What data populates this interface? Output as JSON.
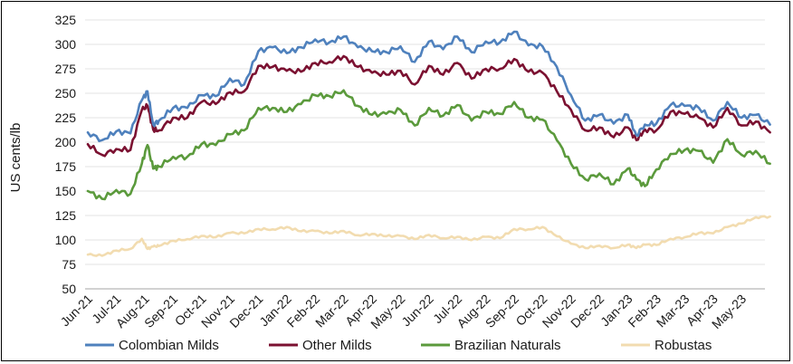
{
  "chart_data": {
    "type": "line",
    "title": "",
    "xlabel": "",
    "ylabel": "US cents/lb",
    "ylim": [
      50,
      325
    ],
    "yticks": [
      50,
      75,
      100,
      125,
      150,
      175,
      200,
      225,
      250,
      275,
      300,
      325
    ],
    "grid": "horizontal",
    "legend_position": "bottom",
    "categories": [
      "Jun-21",
      "Jul-21",
      "Aug-21",
      "Sep-21",
      "Oct-21",
      "Nov-21",
      "Dec-21",
      "Jan-22",
      "Feb-22",
      "Mar-22",
      "Apr-22",
      "May-22",
      "Jun-22",
      "Jul-22",
      "Aug-22",
      "Sep-22",
      "Oct-22",
      "Nov-22",
      "Dec-22",
      "Jan-23",
      "Feb-23",
      "Mar-23",
      "Apr-23",
      "May-23"
    ],
    "x": [
      0,
      0.5,
      1,
      1.5,
      1.9,
      2.1,
      2.3,
      2.5,
      3,
      3.5,
      4,
      4.5,
      5,
      5.5,
      6,
      6.5,
      7,
      7.5,
      8,
      8.5,
      9,
      9.5,
      10,
      10.5,
      11,
      11.5,
      12,
      12.5,
      13,
      13.5,
      14,
      14.5,
      15,
      15.5,
      16,
      16.5,
      17,
      17.5,
      18,
      18.5,
      19,
      19.3,
      19.6,
      20,
      20.5,
      21,
      21.5,
      22,
      22.5,
      23,
      23.5,
      24
    ],
    "series": [
      {
        "name": "Colombian Milds",
        "color": "#4f81bd",
        "values": [
          210,
          205,
          208,
          212,
          240,
          255,
          215,
          225,
          232,
          238,
          245,
          250,
          262,
          262,
          290,
          300,
          288,
          300,
          302,
          305,
          305,
          300,
          290,
          295,
          295,
          285,
          300,
          298,
          305,
          295,
          300,
          305,
          310,
          302,
          295,
          280,
          245,
          225,
          225,
          222,
          225,
          210,
          215,
          222,
          235,
          240,
          232,
          225,
          238,
          228,
          225,
          218
        ]
      },
      {
        "name": "Other Milds",
        "color": "#7b1131",
        "values": [
          198,
          190,
          190,
          195,
          230,
          240,
          210,
          215,
          222,
          228,
          238,
          242,
          248,
          255,
          275,
          280,
          270,
          275,
          278,
          285,
          285,
          280,
          268,
          272,
          270,
          262,
          275,
          272,
          278,
          268,
          272,
          278,
          282,
          275,
          268,
          255,
          230,
          215,
          212,
          208,
          212,
          205,
          210,
          215,
          228,
          232,
          222,
          218,
          232,
          220,
          218,
          210
        ]
      },
      {
        "name": "Brazilian Naturals",
        "color": "#5b9a3c",
        "values": [
          150,
          145,
          148,
          150,
          175,
          200,
          170,
          178,
          182,
          188,
          195,
          200,
          205,
          215,
          232,
          238,
          228,
          242,
          245,
          250,
          250,
          240,
          225,
          232,
          230,
          220,
          232,
          230,
          235,
          225,
          228,
          232,
          238,
          228,
          220,
          205,
          175,
          165,
          165,
          160,
          170,
          165,
          152,
          175,
          185,
          195,
          188,
          182,
          200,
          190,
          188,
          178
        ]
      },
      {
        "name": "Robustas",
        "color": "#f2dcb0",
        "values": [
          85,
          85,
          88,
          92,
          100,
          92,
          92,
          95,
          98,
          102,
          103,
          104,
          106,
          108,
          110,
          112,
          112,
          110,
          108,
          108,
          108,
          106,
          105,
          105,
          103,
          102,
          104,
          103,
          102,
          101,
          102,
          103,
          110,
          112,
          112,
          105,
          95,
          93,
          93,
          93,
          94,
          93,
          94,
          96,
          100,
          104,
          106,
          108,
          112,
          118,
          122,
          124
        ]
      }
    ]
  }
}
